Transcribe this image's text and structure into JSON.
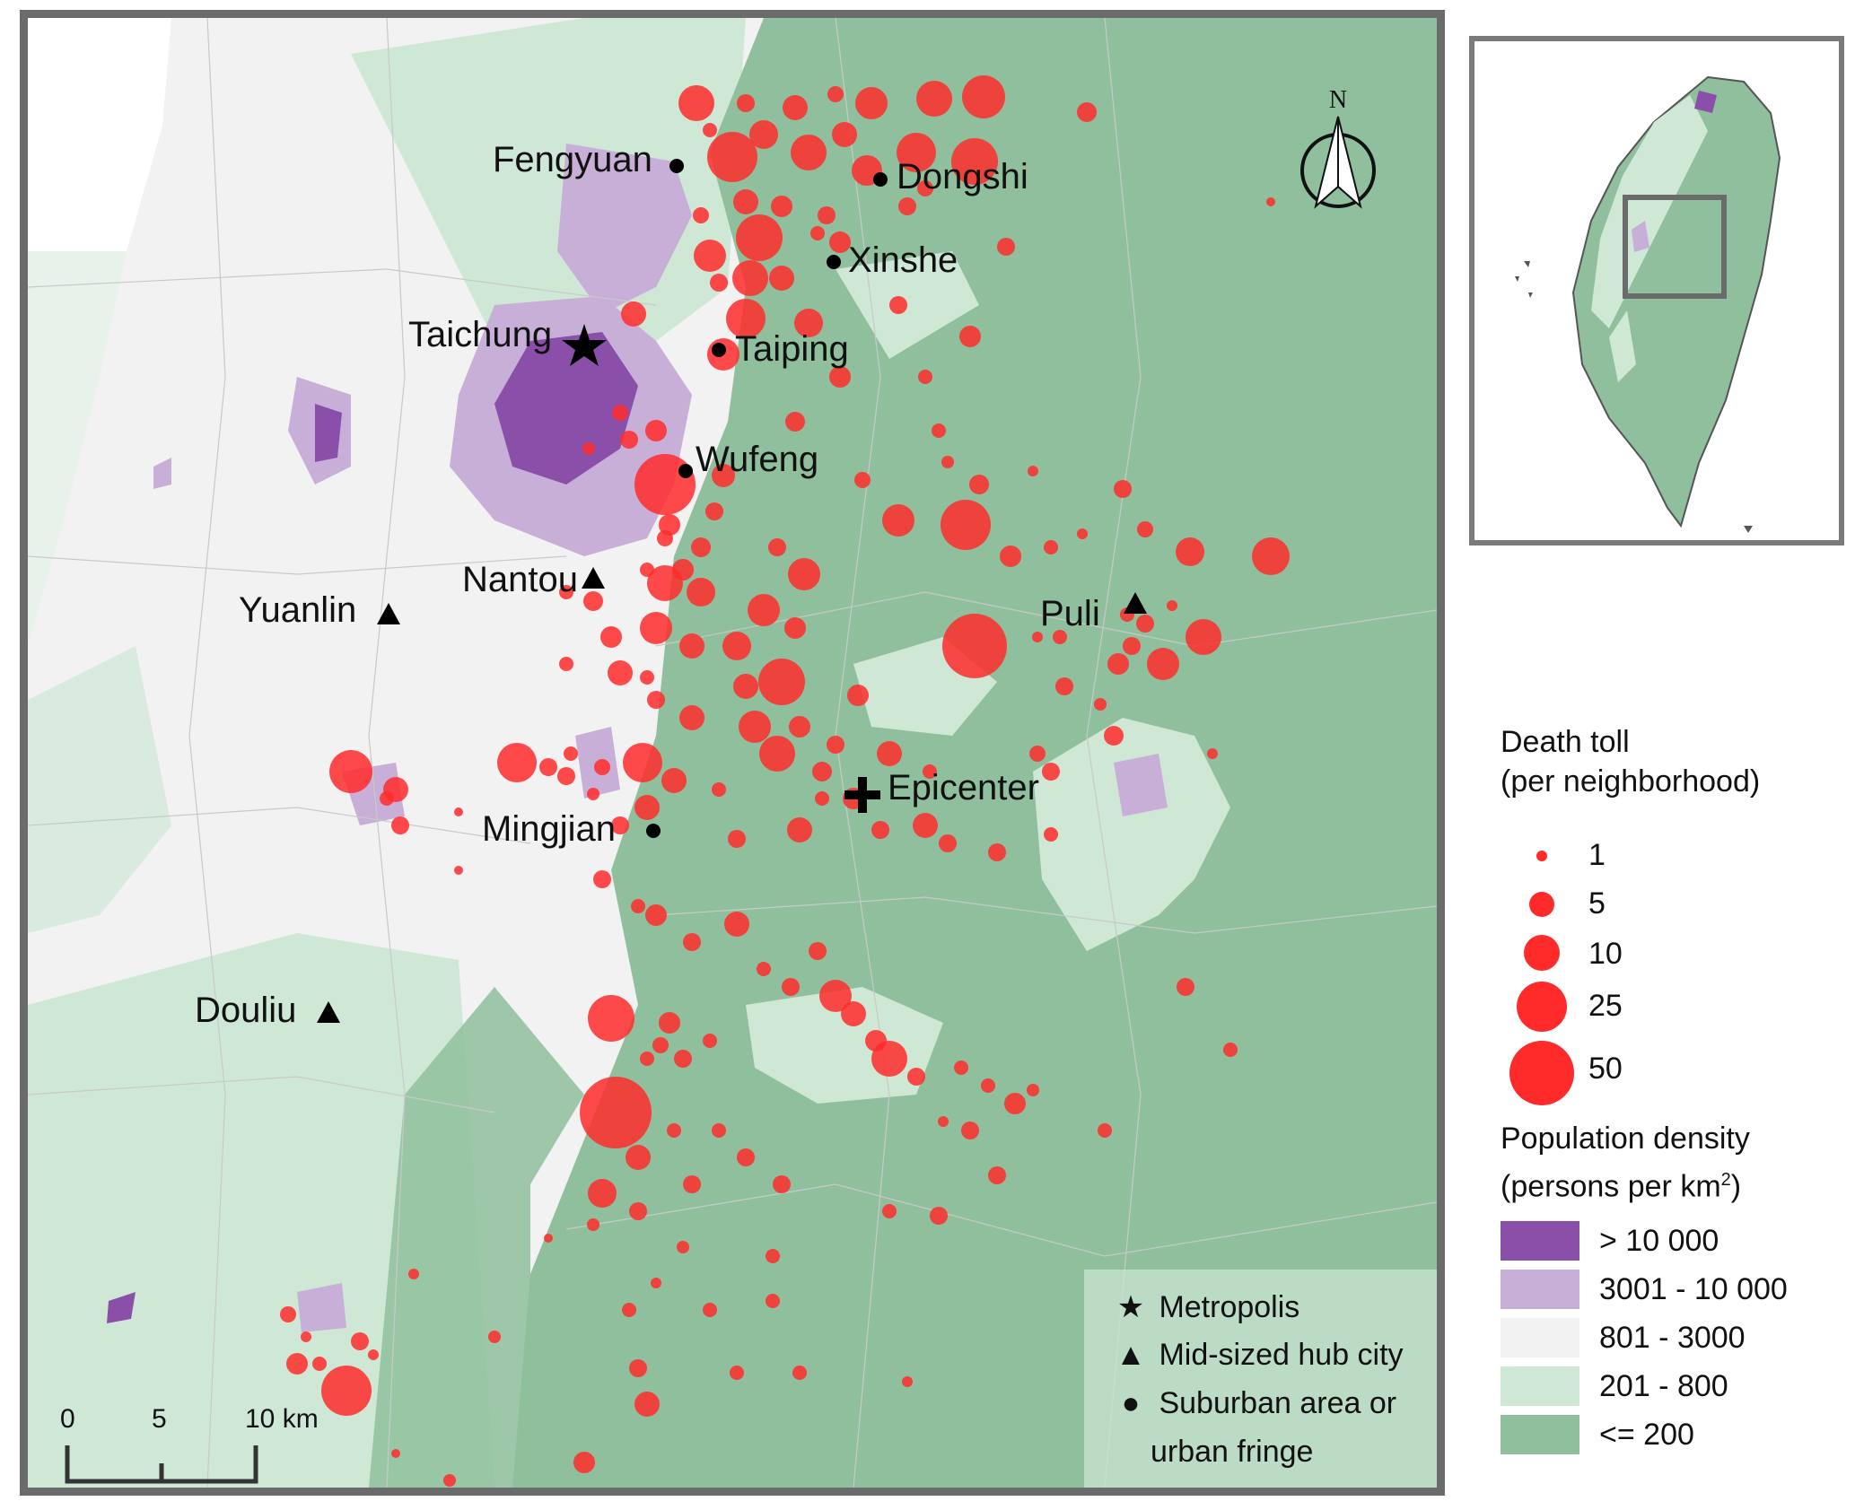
{
  "places": {
    "fengyuan": "Fengyuan",
    "dongshi": "Dongshi",
    "xinshe": "Xinshe",
    "taichung": "Taichung",
    "taiping": "Taiping",
    "wufeng": "Wufeng",
    "nantou": "Nantou",
    "yuanlin": "Yuanlin",
    "puli": "Puli",
    "epicenter": "Epicenter",
    "mingjian": "Mingjian",
    "douliu": "Douliu"
  },
  "key": {
    "metropolis_symbol": "★",
    "metropolis": "Metropolis",
    "hub_symbol": "▲",
    "hub": "Mid-sized hub city",
    "suburban_symbol": "●",
    "suburban_line1": "Suburban area or",
    "suburban_line2": "urban fringe"
  },
  "scale_bar": {
    "labels": [
      "0",
      "5",
      "10 km"
    ]
  },
  "north_arrow": {
    "label": "N"
  },
  "legend": {
    "death_toll_title_line1": "Death toll",
    "death_toll_title_line2": "(per neighborhood)",
    "death_toll_sizes": [
      "1",
      "5",
      "10",
      "25",
      "50"
    ],
    "density_title_line1": "Population density",
    "density_title_line2_prefix": "(persons per km",
    "density_title_line2_sup": "2",
    "density_title_line2_suffix": ")",
    "density_classes": [
      {
        "label": "> 10 000",
        "color": "#8a4fa8"
      },
      {
        "label": "3001 - 10 000",
        "color": "#c7afd8"
      },
      {
        "label": "801 - 3000",
        "color": "#f2f2f2"
      },
      {
        "label": "201 - 800",
        "color": "#cfe8d6"
      },
      {
        "label": "<= 200",
        "color": "#8fbf9c"
      }
    ]
  },
  "colors": {
    "death_circle": "#ff2b2b",
    "density_very_high": "#8a4fa8",
    "density_high": "#c7afd8",
    "density_mid": "#f2f2f2",
    "density_low": "#cfe8d6",
    "density_very_low": "#8fbf9c",
    "frame": "#6b6b6b"
  }
}
